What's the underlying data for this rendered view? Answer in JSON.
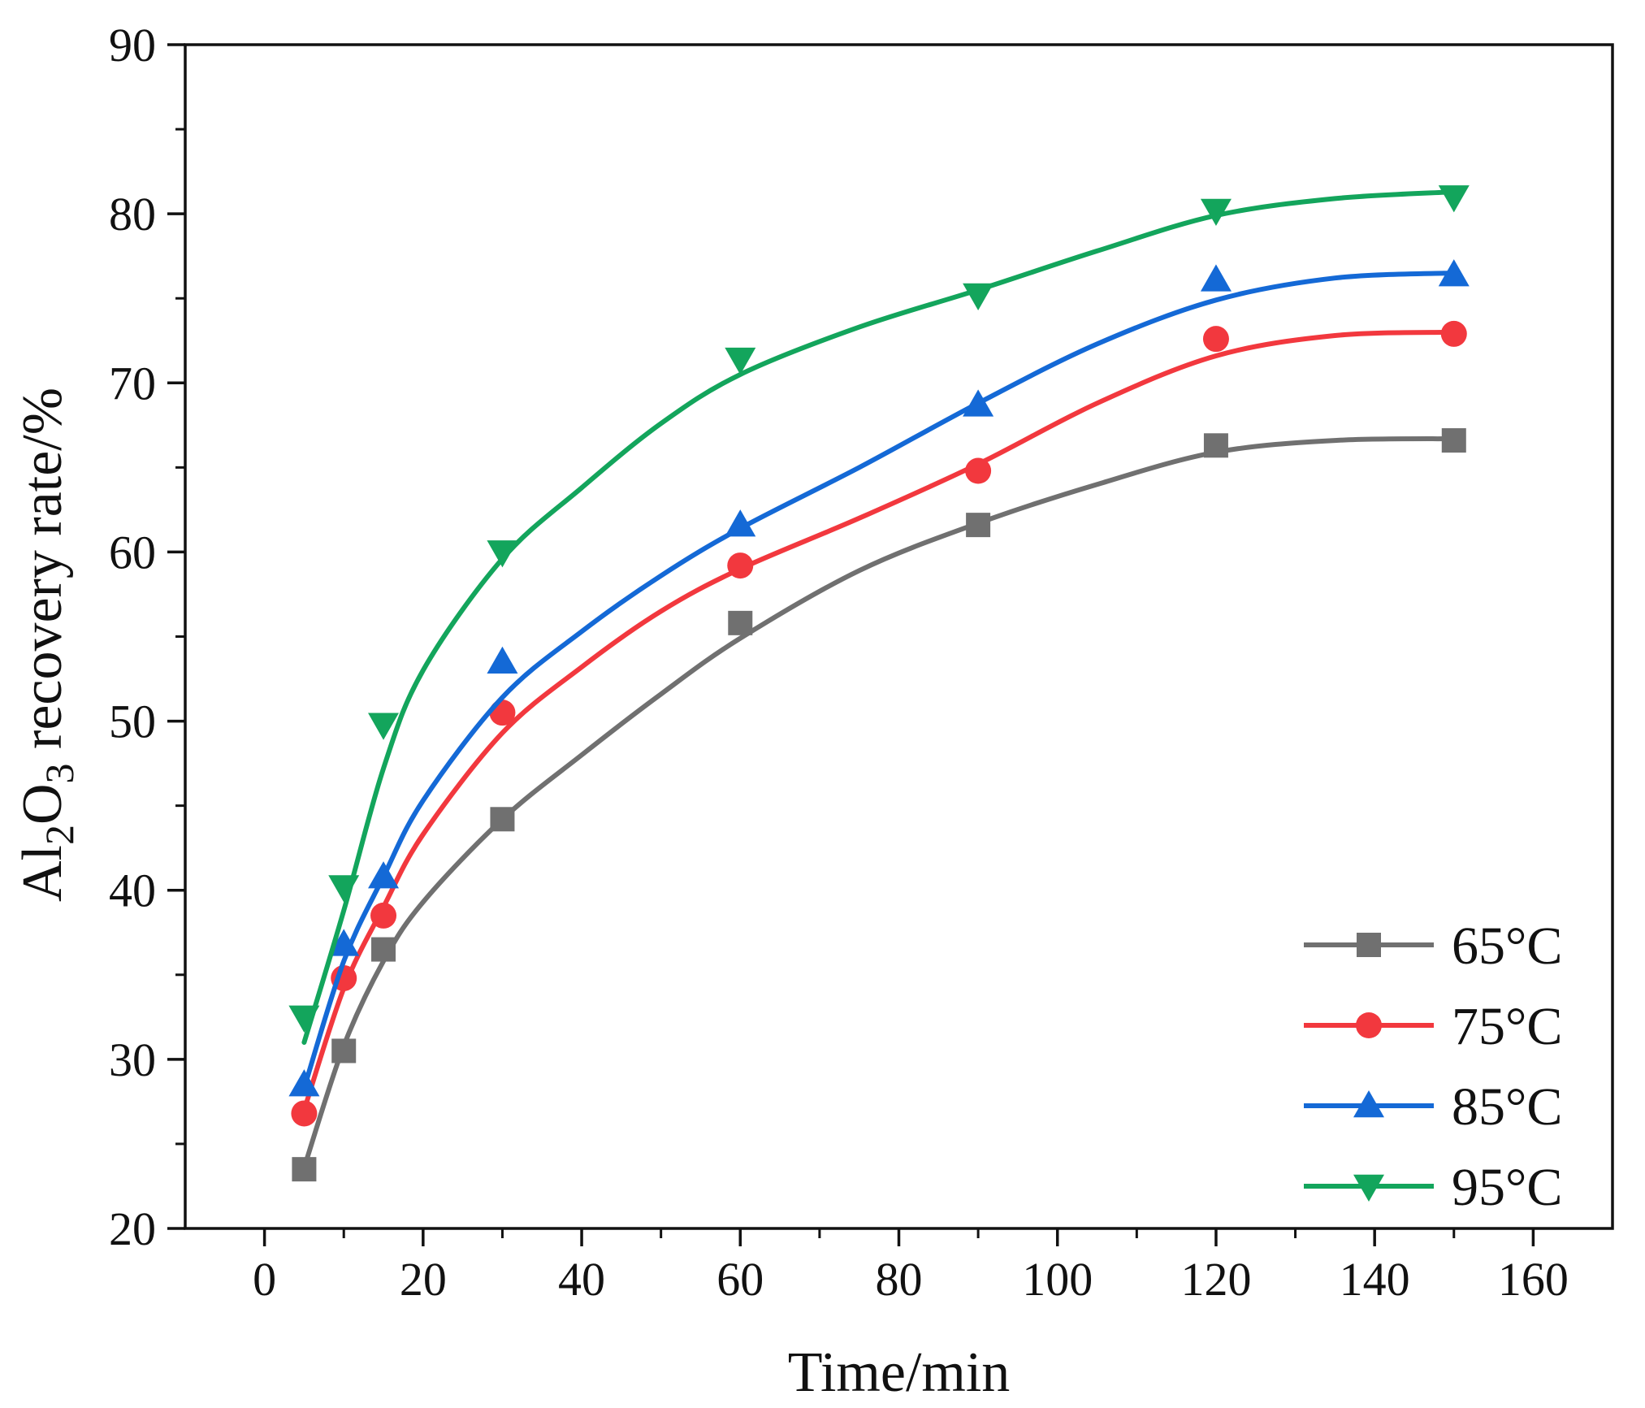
{
  "chart_data": {
    "type": "line",
    "title": "",
    "xlabel": "Time/min",
    "ylabel_parts": [
      "Al",
      "2",
      "O",
      "3",
      " recovery rate/%"
    ],
    "ylabel": "Al2O3 recovery rate/%",
    "xlim": [
      -10,
      170
    ],
    "ylim": [
      20,
      90
    ],
    "xticks": [
      0,
      20,
      40,
      60,
      80,
      100,
      120,
      140,
      160
    ],
    "yticks": [
      20,
      30,
      40,
      50,
      60,
      70,
      80,
      90
    ],
    "xtick_labels": [
      "0",
      "20",
      "40",
      "60",
      "80",
      "100",
      "120",
      "140",
      "160"
    ],
    "ytick_labels": [
      "20",
      "30",
      "40",
      "50",
      "60",
      "70",
      "80",
      "90"
    ],
    "grid": false,
    "legend_position": "bottom-right",
    "x": [
      5,
      10,
      15,
      30,
      60,
      90,
      120,
      150
    ],
    "series": [
      {
        "name": "65°C",
        "marker": "square",
        "color": "#707070",
        "values": [
          23.5,
          30.5,
          36.5,
          44.2,
          55.8,
          61.6,
          66.3,
          66.6
        ],
        "fit": [
          [
            5,
            23.6
          ],
          [
            10,
            30.8
          ],
          [
            15,
            35.8
          ],
          [
            20,
            39.3
          ],
          [
            30,
            44.2
          ],
          [
            40,
            48.0
          ],
          [
            50,
            51.6
          ],
          [
            60,
            54.9
          ],
          [
            75,
            58.9
          ],
          [
            90,
            61.7
          ],
          [
            105,
            64.0
          ],
          [
            120,
            65.9
          ],
          [
            135,
            66.6
          ],
          [
            150,
            66.7
          ]
        ]
      },
      {
        "name": "75°C",
        "marker": "circle",
        "color": "#f2383e",
        "values": [
          26.8,
          34.8,
          38.5,
          50.5,
          59.2,
          64.8,
          72.6,
          72.9
        ],
        "fit": [
          [
            5,
            27.0
          ],
          [
            10,
            34.2
          ],
          [
            15,
            39.0
          ],
          [
            20,
            43.3
          ],
          [
            30,
            49.3
          ],
          [
            40,
            53.2
          ],
          [
            50,
            56.5
          ],
          [
            60,
            59.0
          ],
          [
            75,
            62.0
          ],
          [
            90,
            65.2
          ],
          [
            105,
            68.8
          ],
          [
            120,
            71.6
          ],
          [
            135,
            72.8
          ],
          [
            150,
            73.0
          ]
        ]
      },
      {
        "name": "85°C",
        "marker": "triangle-up",
        "color": "#1469d6",
        "values": [
          28.5,
          36.8,
          40.8,
          53.5,
          61.6,
          68.7,
          76.1,
          76.4
        ],
        "fit": [
          [
            5,
            28.3
          ],
          [
            10,
            35.8
          ],
          [
            15,
            40.8
          ],
          [
            20,
            45.3
          ],
          [
            30,
            51.4
          ],
          [
            40,
            55.3
          ],
          [
            50,
            58.6
          ],
          [
            60,
            61.4
          ],
          [
            75,
            65.0
          ],
          [
            90,
            68.8
          ],
          [
            105,
            72.3
          ],
          [
            120,
            74.9
          ],
          [
            135,
            76.2
          ],
          [
            150,
            76.5
          ]
        ]
      },
      {
        "name": "95°C",
        "marker": "triangle-down",
        "color": "#13a55c",
        "values": [
          32.5,
          40.2,
          49.8,
          60.0,
          71.4,
          75.2,
          80.2,
          81.0
        ],
        "fit": [
          [
            5,
            31.0
          ],
          [
            10,
            38.8
          ],
          [
            15,
            47.2
          ],
          [
            20,
            53.0
          ],
          [
            30,
            59.6
          ],
          [
            40,
            63.8
          ],
          [
            50,
            67.6
          ],
          [
            60,
            70.5
          ],
          [
            75,
            73.3
          ],
          [
            90,
            75.5
          ],
          [
            105,
            77.8
          ],
          [
            120,
            79.9
          ],
          [
            135,
            80.9
          ],
          [
            150,
            81.3
          ]
        ]
      }
    ]
  }
}
